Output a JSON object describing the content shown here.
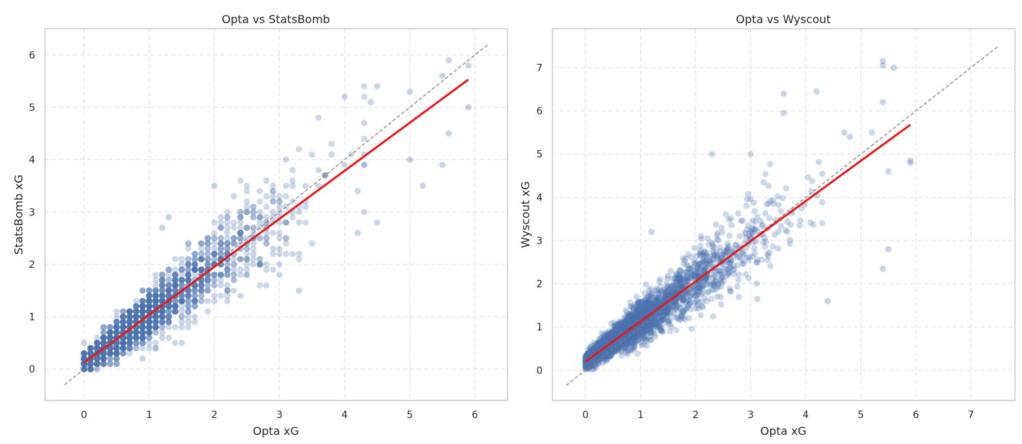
{
  "chart_data": [
    {
      "type": "scatter",
      "title": "Opta vs StatsBomb",
      "xlabel": "Opta xG",
      "ylabel": "StatsBomb xG",
      "xlim": [
        -0.6,
        6.5
      ],
      "ylim": [
        -0.6,
        6.5
      ],
      "xticks": [
        0,
        1,
        2,
        3,
        4,
        5,
        6
      ],
      "yticks": [
        0,
        1,
        2,
        3,
        4,
        5,
        6
      ],
      "grid": true,
      "identity_line": {
        "from": [
          -0.3,
          -0.3
        ],
        "to": [
          6.2,
          6.2
        ],
        "style": "dashed",
        "color": "#808080"
      },
      "regression_line": {
        "from": [
          0,
          0.12
        ],
        "to": [
          5.9,
          5.53
        ],
        "color": "#e41a1c"
      },
      "point_color": "#4c72b0",
      "points_grid_step": 0.1,
      "points_band_sd": 0.45,
      "point_count": 2600,
      "outliers": [
        [
          4.0,
          5.2
        ],
        [
          4.4,
          5.1
        ],
        [
          4.5,
          5.4
        ],
        [
          5.0,
          5.3
        ],
        [
          5.5,
          5.6
        ],
        [
          5.6,
          5.9
        ],
        [
          5.9,
          5.8
        ],
        [
          5.6,
          4.5
        ],
        [
          5.9,
          5.0
        ],
        [
          5.5,
          3.9
        ],
        [
          5.2,
          3.5
        ],
        [
          4.5,
          2.8
        ],
        [
          4.2,
          2.6
        ],
        [
          3.3,
          1.5
        ],
        [
          1.2,
          2.7
        ],
        [
          1.3,
          2.9
        ],
        [
          0.0,
          0.5
        ],
        [
          0.9,
          0.2
        ],
        [
          2.0,
          3.5
        ],
        [
          5.0,
          4.0
        ]
      ]
    },
    {
      "type": "scatter",
      "title": "Opta vs Wyscout",
      "xlabel": "Opta xG",
      "ylabel": "Wyscout xG",
      "xlim": [
        -0.6,
        7.8
      ],
      "ylim": [
        -0.7,
        7.9
      ],
      "xticks": [
        0,
        1,
        2,
        3,
        4,
        5,
        6,
        7
      ],
      "yticks": [
        0,
        1,
        2,
        3,
        4,
        5,
        6,
        7
      ],
      "grid": true,
      "identity_line": {
        "from": [
          -0.35,
          -0.35
        ],
        "to": [
          7.5,
          7.5
        ],
        "style": "dashed",
        "color": "#808080"
      },
      "regression_line": {
        "from": [
          0,
          0.2
        ],
        "to": [
          5.9,
          5.68
        ],
        "color": "#e41a1c"
      },
      "point_color": "#4c72b0",
      "points_grid_step": 0,
      "points_band_sd": 0.4,
      "point_count": 3400,
      "outliers": [
        [
          5.4,
          7.15
        ],
        [
          5.6,
          7.0
        ],
        [
          5.4,
          7.05
        ],
        [
          4.2,
          6.45
        ],
        [
          3.6,
          6.4
        ],
        [
          3.6,
          5.95
        ],
        [
          5.4,
          6.2
        ],
        [
          5.9,
          4.85
        ],
        [
          5.9,
          4.8
        ],
        [
          5.5,
          4.6
        ],
        [
          5.5,
          2.8
        ],
        [
          5.4,
          2.35
        ],
        [
          4.4,
          1.6
        ],
        [
          4.7,
          5.5
        ],
        [
          5.2,
          5.5
        ],
        [
          4.8,
          5.4
        ],
        [
          2.3,
          5.0
        ],
        [
          3.0,
          5.0
        ],
        [
          1.2,
          3.2
        ]
      ]
    }
  ]
}
